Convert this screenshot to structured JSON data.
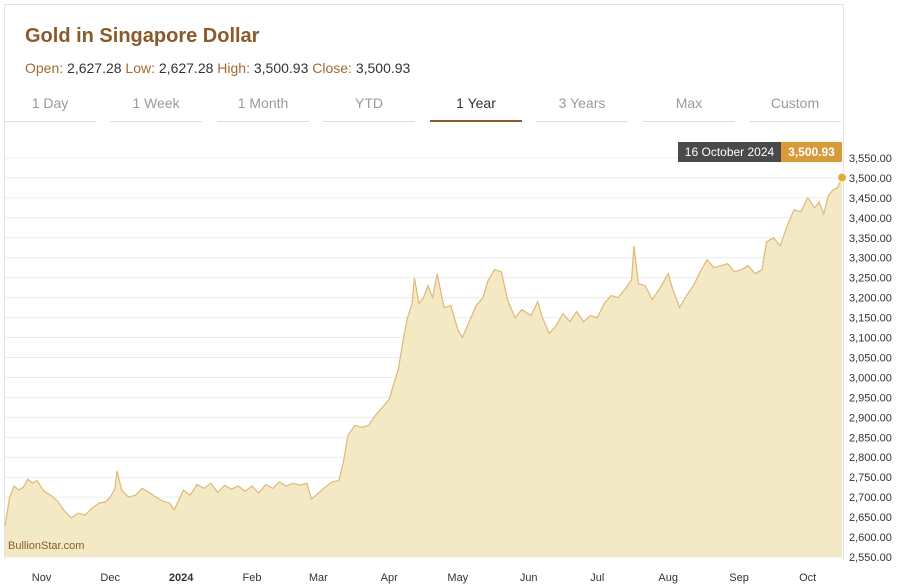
{
  "title": "Gold in Singapore Dollar",
  "ohlc": {
    "open_label": "Open:",
    "open": "2,627.28",
    "low_label": "Low:",
    "low": "2,627.28",
    "high_label": "High:",
    "high": "3,500.93",
    "close_label": "Close:",
    "close": "3,500.93"
  },
  "tabs": [
    {
      "label": "1 Day",
      "active": false
    },
    {
      "label": "1 Week",
      "active": false
    },
    {
      "label": "1 Month",
      "active": false
    },
    {
      "label": "YTD",
      "active": false
    },
    {
      "label": "1 Year",
      "active": true
    },
    {
      "label": "3 Years",
      "active": false
    },
    {
      "label": "Max",
      "active": false
    },
    {
      "label": "Custom",
      "active": false
    }
  ],
  "watermark": "BullionStar.com",
  "tooltip": {
    "date": "16 October 2024",
    "value": "3,500.93"
  },
  "colors": {
    "area_fill": "#f3e9c4",
    "line": "#e0b878",
    "accent": "#8a5a2b",
    "marker": "#e8a83a"
  },
  "chart_data": {
    "type": "area",
    "ylim": [
      2550,
      3575
    ],
    "yticks": [
      2550,
      2600,
      2650,
      2700,
      2750,
      2800,
      2850,
      2900,
      2950,
      3000,
      3050,
      3100,
      3150,
      3200,
      3250,
      3300,
      3350,
      3400,
      3450,
      3500,
      3550
    ],
    "ytick_labels": [
      "2,550.00",
      "2,600.00",
      "2,650.00",
      "2,700.00",
      "2,750.00",
      "2,800.00",
      "2,850.00",
      "2,900.00",
      "2,950.00",
      "3,000.00",
      "3,050.00",
      "3,100.00",
      "3,150.00",
      "3,200.00",
      "3,250.00",
      "3,300.00",
      "3,350.00",
      "3,400.00",
      "3,450.00",
      "3,500.00",
      "3,550.00"
    ],
    "xticks": [
      {
        "label": "Nov",
        "x": "2023-11-01",
        "bold": false
      },
      {
        "label": "Dec",
        "x": "2023-12-01",
        "bold": false
      },
      {
        "label": "2024",
        "x": "2024-01-01",
        "bold": true
      },
      {
        "label": "Feb",
        "x": "2024-02-01",
        "bold": false
      },
      {
        "label": "Mar",
        "x": "2024-03-01",
        "bold": false
      },
      {
        "label": "Apr",
        "x": "2024-04-01",
        "bold": false
      },
      {
        "label": "May",
        "x": "2024-05-01",
        "bold": false
      },
      {
        "label": "Jun",
        "x": "2024-06-01",
        "bold": false
      },
      {
        "label": "Jul",
        "x": "2024-07-01",
        "bold": false
      },
      {
        "label": "Aug",
        "x": "2024-08-01",
        "bold": false
      },
      {
        "label": "Sep",
        "x": "2024-09-01",
        "bold": false
      },
      {
        "label": "Oct",
        "x": "2024-10-01",
        "bold": false
      }
    ],
    "x_start": "2023-10-16",
    "x_end": "2024-10-16",
    "points": [
      [
        "2023-10-16",
        2627
      ],
      [
        "2023-10-18",
        2700
      ],
      [
        "2023-10-20",
        2728
      ],
      [
        "2023-10-22",
        2718
      ],
      [
        "2023-10-24",
        2725
      ],
      [
        "2023-10-26",
        2745
      ],
      [
        "2023-10-28",
        2735
      ],
      [
        "2023-10-30",
        2742
      ],
      [
        "2023-11-02",
        2715
      ],
      [
        "2023-11-05",
        2705
      ],
      [
        "2023-11-08",
        2690
      ],
      [
        "2023-11-11",
        2665
      ],
      [
        "2023-11-14",
        2648
      ],
      [
        "2023-11-17",
        2660
      ],
      [
        "2023-11-20",
        2655
      ],
      [
        "2023-11-23",
        2672
      ],
      [
        "2023-11-26",
        2685
      ],
      [
        "2023-11-29",
        2688
      ],
      [
        "2023-12-01",
        2700
      ],
      [
        "2023-12-03",
        2720
      ],
      [
        "2023-12-04",
        2765
      ],
      [
        "2023-12-06",
        2718
      ],
      [
        "2023-12-09",
        2700
      ],
      [
        "2023-12-12",
        2705
      ],
      [
        "2023-12-15",
        2722
      ],
      [
        "2023-12-18",
        2712
      ],
      [
        "2023-12-21",
        2700
      ],
      [
        "2023-12-24",
        2690
      ],
      [
        "2023-12-27",
        2685
      ],
      [
        "2023-12-29",
        2668
      ],
      [
        "2024-01-02",
        2718
      ],
      [
        "2024-01-05",
        2705
      ],
      [
        "2024-01-08",
        2732
      ],
      [
        "2024-01-11",
        2722
      ],
      [
        "2024-01-14",
        2735
      ],
      [
        "2024-01-17",
        2712
      ],
      [
        "2024-01-20",
        2730
      ],
      [
        "2024-01-23",
        2720
      ],
      [
        "2024-01-26",
        2728
      ],
      [
        "2024-01-29",
        2715
      ],
      [
        "2024-02-01",
        2728
      ],
      [
        "2024-02-04",
        2710
      ],
      [
        "2024-02-07",
        2732
      ],
      [
        "2024-02-10",
        2722
      ],
      [
        "2024-02-13",
        2738
      ],
      [
        "2024-02-16",
        2728
      ],
      [
        "2024-02-19",
        2735
      ],
      [
        "2024-02-22",
        2730
      ],
      [
        "2024-02-25",
        2735
      ],
      [
        "2024-02-27",
        2695
      ],
      [
        "2024-03-01",
        2710
      ],
      [
        "2024-03-04",
        2725
      ],
      [
        "2024-03-07",
        2738
      ],
      [
        "2024-03-10",
        2742
      ],
      [
        "2024-03-12",
        2790
      ],
      [
        "2024-03-14",
        2855
      ],
      [
        "2024-03-17",
        2880
      ],
      [
        "2024-03-20",
        2875
      ],
      [
        "2024-03-23",
        2880
      ],
      [
        "2024-03-26",
        2905
      ],
      [
        "2024-03-29",
        2925
      ],
      [
        "2024-04-01",
        2945
      ],
      [
        "2024-04-03",
        2985
      ],
      [
        "2024-04-05",
        3020
      ],
      [
        "2024-04-07",
        3090
      ],
      [
        "2024-04-09",
        3150
      ],
      [
        "2024-04-11",
        3185
      ],
      [
        "2024-04-12",
        3250
      ],
      [
        "2024-04-14",
        3185
      ],
      [
        "2024-04-16",
        3200
      ],
      [
        "2024-04-18",
        3230
      ],
      [
        "2024-04-20",
        3200
      ],
      [
        "2024-04-22",
        3260
      ],
      [
        "2024-04-25",
        3175
      ],
      [
        "2024-04-28",
        3180
      ],
      [
        "2024-05-01",
        3120
      ],
      [
        "2024-05-03",
        3100
      ],
      [
        "2024-05-06",
        3140
      ],
      [
        "2024-05-09",
        3180
      ],
      [
        "2024-05-12",
        3200
      ],
      [
        "2024-05-14",
        3240
      ],
      [
        "2024-05-17",
        3270
      ],
      [
        "2024-05-20",
        3265
      ],
      [
        "2024-05-23",
        3190
      ],
      [
        "2024-05-26",
        3150
      ],
      [
        "2024-05-29",
        3170
      ],
      [
        "2024-06-02",
        3155
      ],
      [
        "2024-06-05",
        3190
      ],
      [
        "2024-06-07",
        3150
      ],
      [
        "2024-06-10",
        3110
      ],
      [
        "2024-06-13",
        3130
      ],
      [
        "2024-06-16",
        3160
      ],
      [
        "2024-06-19",
        3140
      ],
      [
        "2024-06-22",
        3165
      ],
      [
        "2024-06-25",
        3140
      ],
      [
        "2024-06-28",
        3155
      ],
      [
        "2024-07-01",
        3150
      ],
      [
        "2024-07-04",
        3185
      ],
      [
        "2024-07-07",
        3205
      ],
      [
        "2024-07-10",
        3200
      ],
      [
        "2024-07-13",
        3220
      ],
      [
        "2024-07-16",
        3245
      ],
      [
        "2024-07-17",
        3330
      ],
      [
        "2024-07-19",
        3235
      ],
      [
        "2024-07-22",
        3230
      ],
      [
        "2024-07-25",
        3195
      ],
      [
        "2024-07-28",
        3220
      ],
      [
        "2024-08-01",
        3260
      ],
      [
        "2024-08-03",
        3220
      ],
      [
        "2024-08-06",
        3175
      ],
      [
        "2024-08-09",
        3205
      ],
      [
        "2024-08-12",
        3230
      ],
      [
        "2024-08-15",
        3265
      ],
      [
        "2024-08-18",
        3295
      ],
      [
        "2024-08-21",
        3275
      ],
      [
        "2024-08-24",
        3280
      ],
      [
        "2024-08-27",
        3285
      ],
      [
        "2024-08-30",
        3265
      ],
      [
        "2024-09-02",
        3270
      ],
      [
        "2024-09-05",
        3280
      ],
      [
        "2024-09-08",
        3260
      ],
      [
        "2024-09-11",
        3270
      ],
      [
        "2024-09-13",
        3340
      ],
      [
        "2024-09-16",
        3350
      ],
      [
        "2024-09-19",
        3330
      ],
      [
        "2024-09-22",
        3380
      ],
      [
        "2024-09-25",
        3420
      ],
      [
        "2024-09-28",
        3415
      ],
      [
        "2024-10-01",
        3450
      ],
      [
        "2024-10-04",
        3425
      ],
      [
        "2024-10-06",
        3440
      ],
      [
        "2024-10-08",
        3410
      ],
      [
        "2024-10-10",
        3455
      ],
      [
        "2024-10-12",
        3470
      ],
      [
        "2024-10-14",
        3475
      ],
      [
        "2024-10-16",
        3500.93
      ]
    ],
    "highlight": {
      "x": "2024-10-16",
      "y": 3500.93
    }
  }
}
